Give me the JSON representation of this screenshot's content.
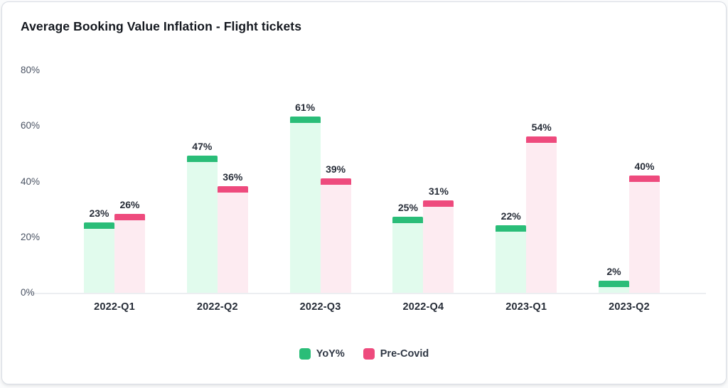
{
  "chart_data": {
    "type": "bar",
    "title": "Average Booking Value Inflation - Flight tickets",
    "categories": [
      "2022-Q1",
      "2022-Q2",
      "2022-Q3",
      "2022-Q4",
      "2023-Q1",
      "2023-Q2"
    ],
    "series": [
      {
        "name": "YoY%",
        "color": "#2abd78",
        "color_light": "#e1fbed",
        "values": [
          23,
          47,
          61,
          25,
          22,
          2
        ]
      },
      {
        "name": "Pre-Covid",
        "color": "#ee4a7d",
        "color_light": "#fdebf1",
        "values": [
          26,
          36,
          39,
          31,
          54,
          40
        ]
      }
    ],
    "y_axis": {
      "min": 0,
      "max": 80,
      "tick_values": [
        80,
        60,
        40,
        20,
        0
      ],
      "tick_labels": [
        "80%",
        "60%",
        "40%",
        "20%",
        "0%"
      ]
    },
    "value_suffix": "%",
    "value_labels_shown": true,
    "grid": false,
    "legend_position": "bottom"
  },
  "colors": {
    "card_background": "#ffffff",
    "card_border": "#d9dde4",
    "title_text": "#14181f",
    "axis_tick_text": "#4a5363",
    "category_text": "#262c37",
    "value_label_text": "#272d38",
    "baseline": "#eceef1",
    "yoy_green": "#2abd78",
    "yoy_green_light": "#e1fbed",
    "precovid_pink": "#ee4a7d",
    "precovid_pink_light": "#fdebf1"
  }
}
